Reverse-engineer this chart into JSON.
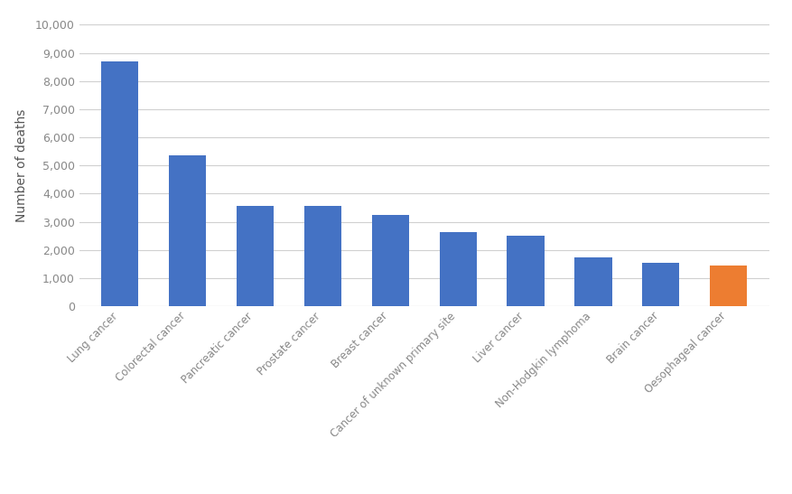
{
  "categories": [
    "Lung cancer",
    "Colorectal cancer",
    "Pancreatic cancer",
    "Prostate cancer",
    "Breast cancer",
    "Cancer of unknown primary site",
    "Liver cancer",
    "Non-Hodgkin lymphoma",
    "Brain cancer",
    "Oesophageal cancer"
  ],
  "values": [
    8700,
    5350,
    3580,
    3550,
    3250,
    2620,
    2520,
    1750,
    1560,
    1450
  ],
  "bar_colors": [
    "#4472C4",
    "#4472C4",
    "#4472C4",
    "#4472C4",
    "#4472C4",
    "#4472C4",
    "#4472C4",
    "#4472C4",
    "#4472C4",
    "#ED7D31"
  ],
  "ylabel": "Number of deaths",
  "ylim": [
    0,
    10000
  ],
  "yticks": [
    0,
    1000,
    2000,
    3000,
    4000,
    5000,
    6000,
    7000,
    8000,
    9000,
    10000
  ],
  "background_color": "#ffffff",
  "grid_color": "#d0d0d0",
  "bar_width": 0.55,
  "tick_label_color": "#888888",
  "ylabel_color": "#555555"
}
